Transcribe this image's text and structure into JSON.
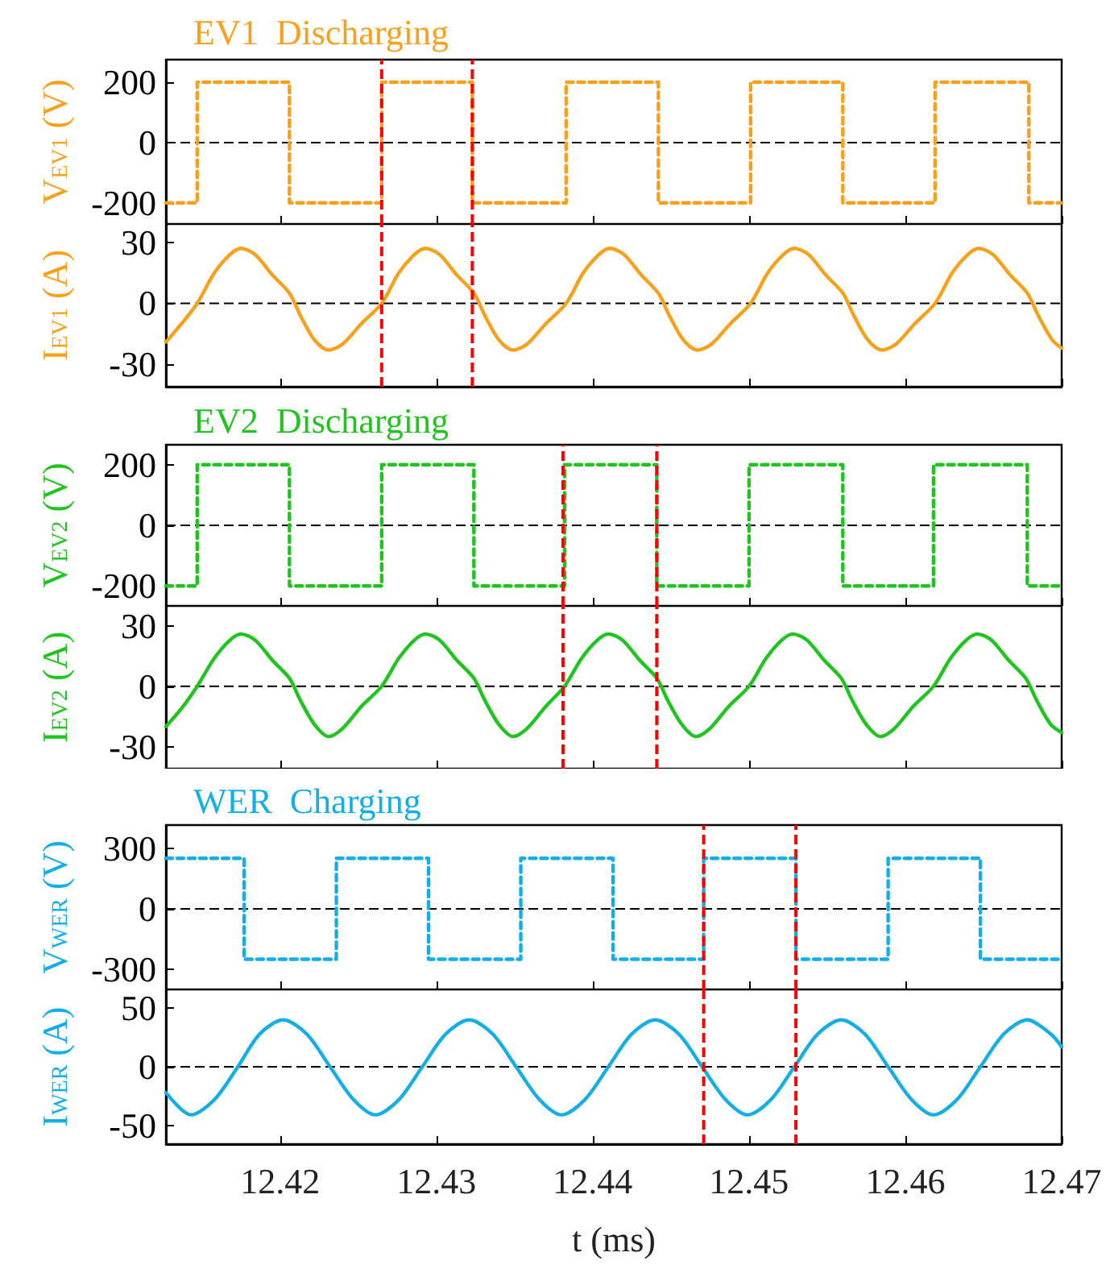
{
  "chart_data": [
    {
      "type": "step",
      "title": "EV1  Discharging",
      "ylabel": "V$_{EV1}$ (V)",
      "xlim": [
        12.4127,
        12.47
      ],
      "xticks": [
        12.42,
        12.43,
        12.44,
        12.45,
        12.46,
        12.47
      ],
      "ylim": [
        -270,
        275
      ],
      "yticks": [
        -200,
        0,
        200
      ],
      "tick_labels": "y",
      "line_style": "dotted",
      "series": [
        {
          "color": "#f9a01b",
          "x": [
            12.4127,
            12.4147,
            12.4206,
            12.4265,
            12.4323,
            12.4383,
            12.4442,
            12.4501,
            12.456,
            12.4619,
            12.4679,
            12.47
          ],
          "values": [
            -200,
            200,
            -200,
            200,
            -200,
            200,
            -200,
            200,
            -200,
            200,
            -200,
            -200
          ]
        }
      ],
      "ref_lines": [
        {
          "axis": "y",
          "value": 0,
          "color": "#000000",
          "line_style": "dashed"
        },
        {
          "axis": "x",
          "value": 12.4265,
          "color": "#ff0000",
          "line_style": "dashed"
        },
        {
          "axis": "x",
          "value": 12.4323,
          "color": "#ff0000",
          "line_style": "dashed"
        }
      ]
    },
    {
      "type": "line",
      "ylabel": "I$_{EV1}$ (A)",
      "xlim": [
        12.4127,
        12.47
      ],
      "xticks": [
        12.42,
        12.43,
        12.44,
        12.45,
        12.46,
        12.47
      ],
      "ylim": [
        -41,
        39
      ],
      "yticks": [
        -30,
        0,
        30
      ],
      "tick_labels": "y",
      "line_style": "solid",
      "series": [
        {
          "color": "#f9a01b",
          "x": [
            12.4127,
            12.4137,
            12.4147,
            12.4158,
            12.4168,
            12.4175,
            12.4184,
            12.4195,
            12.4206,
            12.4213,
            12.4222,
            12.4231,
            12.424,
            12.4252,
            12.4265,
            12.4276,
            12.4286,
            12.4293,
            12.4302,
            12.4313,
            12.4324,
            12.4331,
            12.434,
            12.4349,
            12.4358,
            12.437,
            12.4383,
            12.4394,
            12.4404,
            12.4411,
            12.442,
            12.4431,
            12.4442,
            12.4449,
            12.4458,
            12.4467,
            12.4476,
            12.4488,
            12.4501,
            12.4512,
            12.4522,
            12.4529,
            12.4538,
            12.4549,
            12.456,
            12.4567,
            12.4576,
            12.4585,
            12.4594,
            12.4606,
            12.4619,
            12.463,
            12.464,
            12.4647,
            12.4656,
            12.4667,
            12.4678,
            12.4685,
            12.4694,
            12.47
          ],
          "values": [
            -19,
            -10,
            0,
            15,
            24,
            27,
            24,
            14,
            5,
            -6,
            -18,
            -23,
            -20,
            -10,
            0,
            15,
            24,
            27,
            24,
            14,
            5,
            -6,
            -18,
            -23,
            -20,
            -10,
            0,
            15,
            24,
            27,
            24,
            14,
            5,
            -6,
            -18,
            -23,
            -20,
            -10,
            0,
            15,
            24,
            27,
            24,
            14,
            5,
            -6,
            -18,
            -23,
            -20,
            -10,
            0,
            15,
            24,
            27,
            24,
            14,
            5,
            -6,
            -18,
            -22
          ]
        }
      ],
      "ref_lines": [
        {
          "axis": "y",
          "value": 0,
          "color": "#000000",
          "line_style": "dashed"
        },
        {
          "axis": "x",
          "value": 12.4265,
          "color": "#ff0000",
          "line_style": "dashed"
        },
        {
          "axis": "x",
          "value": 12.4323,
          "color": "#ff0000",
          "line_style": "dashed"
        }
      ]
    },
    {
      "type": "step",
      "title": "EV2  Discharging",
      "ylabel": "V$_{EV2}$ (V)",
      "xlim": [
        12.4127,
        12.47
      ],
      "xticks": [
        12.42,
        12.43,
        12.44,
        12.45,
        12.46,
        12.47
      ],
      "ylim": [
        -266,
        266
      ],
      "yticks": [
        -200,
        0,
        200
      ],
      "tick_labels": "y",
      "line_style": "dotted",
      "series": [
        {
          "color": "#1fc41f",
          "x": [
            12.4127,
            12.4147,
            12.4206,
            12.4265,
            12.4324,
            12.4382,
            12.4441,
            12.45,
            12.456,
            12.4618,
            12.4678,
            12.47
          ],
          "values": [
            -200,
            200,
            -200,
            200,
            -200,
            200,
            -200,
            200,
            -200,
            200,
            -200,
            -200
          ]
        }
      ],
      "ref_lines": [
        {
          "axis": "y",
          "value": 0,
          "color": "#000000",
          "line_style": "dashed"
        },
        {
          "axis": "x",
          "value": 12.4381,
          "color": "#ff0000",
          "line_style": "dashed"
        },
        {
          "axis": "x",
          "value": 12.4441,
          "color": "#ff0000",
          "line_style": "dashed"
        }
      ]
    },
    {
      "type": "line",
      "ylabel": "I$_{EV2}$ (A)",
      "xlim": [
        12.4127,
        12.47
      ],
      "xticks": [
        12.42,
        12.43,
        12.44,
        12.45,
        12.46,
        12.47
      ],
      "ylim": [
        -41,
        40
      ],
      "yticks": [
        -30,
        0,
        30
      ],
      "tick_labels": "y",
      "line_style": "solid",
      "series": [
        {
          "color": "#1fc41f",
          "x": [
            12.4127,
            12.4137,
            12.4147,
            12.4158,
            12.4168,
            12.4175,
            12.4184,
            12.4195,
            12.4206,
            12.4213,
            12.4222,
            12.4231,
            12.424,
            12.4252,
            12.4265,
            12.4276,
            12.4286,
            12.4293,
            12.4302,
            12.4313,
            12.4324,
            12.4331,
            12.434,
            12.4349,
            12.4358,
            12.437,
            12.4382,
            12.4393,
            12.4403,
            12.441,
            12.4419,
            12.443,
            12.4441,
            12.4448,
            12.4457,
            12.4466,
            12.4475,
            12.4487,
            12.45,
            12.4511,
            12.4521,
            12.4528,
            12.4537,
            12.4548,
            12.4559,
            12.4566,
            12.4575,
            12.4584,
            12.4593,
            12.4605,
            12.4618,
            12.4629,
            12.4639,
            12.4646,
            12.4655,
            12.4666,
            12.4677,
            12.4684,
            12.4693,
            12.47
          ],
          "values": [
            -20,
            -11,
            0,
            14,
            23,
            26,
            23,
            13,
            4,
            -7,
            -19,
            -25,
            -21,
            -10,
            0,
            14,
            23,
            26,
            23,
            13,
            4,
            -7,
            -19,
            -25,
            -21,
            -10,
            0,
            14,
            23,
            26,
            23,
            13,
            4,
            -7,
            -19,
            -25,
            -21,
            -10,
            0,
            14,
            23,
            26,
            23,
            13,
            4,
            -7,
            -19,
            -25,
            -21,
            -10,
            0,
            14,
            23,
            26,
            23,
            13,
            4,
            -7,
            -19,
            -23
          ]
        }
      ],
      "ref_lines": [
        {
          "axis": "y",
          "value": 0,
          "color": "#000000",
          "line_style": "dashed"
        },
        {
          "axis": "x",
          "value": 12.4381,
          "color": "#ff0000",
          "line_style": "dashed"
        },
        {
          "axis": "x",
          "value": 12.4441,
          "color": "#ff0000",
          "line_style": "dashed"
        }
      ]
    },
    {
      "type": "step",
      "title": "WER  Charging",
      "ylabel": "V$_{WER}$ (V)",
      "xlim": [
        12.4127,
        12.47
      ],
      "xticks": [
        12.42,
        12.43,
        12.44,
        12.45,
        12.46,
        12.47
      ],
      "ylim": [
        -400,
        415
      ],
      "yticks": [
        -300,
        0,
        300
      ],
      "tick_labels": "y",
      "line_style": "dotted",
      "series": [
        {
          "color": "#14aee6",
          "x": [
            12.4127,
            12.4177,
            12.4236,
            12.4295,
            12.4354,
            12.4413,
            12.4471,
            12.453,
            12.4589,
            12.4648,
            12.47
          ],
          "values": [
            250,
            -250,
            250,
            -250,
            250,
            -250,
            250,
            -250,
            250,
            -250,
            -250
          ]
        }
      ],
      "ref_lines": [
        {
          "axis": "y",
          "value": 0,
          "color": "#000000",
          "line_style": "dashed"
        },
        {
          "axis": "x",
          "value": 12.4471,
          "color": "#ff0000",
          "line_style": "dashed"
        },
        {
          "axis": "x",
          "value": 12.453,
          "color": "#ff0000",
          "line_style": "dashed"
        }
      ]
    },
    {
      "type": "line",
      "ylabel": "I$_{WER}$ (A)",
      "xlabel": "t (ms)",
      "xlim": [
        12.4127,
        12.47
      ],
      "xticks": [
        12.42,
        12.43,
        12.44,
        12.45,
        12.46,
        12.47
      ],
      "ylim": [
        -66,
        66
      ],
      "yticks": [
        -50,
        0,
        50
      ],
      "line_style": "solid",
      "series": [
        {
          "color": "#14aee6",
          "x": [
            12.4127,
            12.4143,
            12.4158,
            12.4173,
            12.4187,
            12.4202,
            12.4217,
            12.4232,
            12.4247,
            12.4261,
            12.4276,
            12.4291,
            12.4306,
            12.4321,
            12.4336,
            12.4351,
            12.4366,
            12.438,
            12.4395,
            12.441,
            12.4425,
            12.444,
            12.4455,
            12.447,
            12.4485,
            12.4499,
            12.4514,
            12.4529,
            12.4544,
            12.4559,
            12.4574,
            12.4589,
            12.4604,
            12.4618,
            12.4633,
            12.4648,
            12.4663,
            12.4678,
            12.4693,
            12.47
          ],
          "values": [
            -22,
            -41,
            -28,
            0,
            28,
            40,
            28,
            0,
            -28,
            -41,
            -28,
            0,
            28,
            40,
            28,
            0,
            -28,
            -41,
            -28,
            0,
            28,
            40,
            28,
            0,
            -28,
            -41,
            -28,
            0,
            28,
            40,
            28,
            0,
            -28,
            -41,
            -28,
            0,
            28,
            40,
            28,
            17
          ]
        }
      ],
      "ref_lines": [
        {
          "axis": "y",
          "value": 0,
          "color": "#000000",
          "line_style": "dashed"
        },
        {
          "axis": "x",
          "value": 12.4471,
          "color": "#ff0000",
          "line_style": "dashed"
        },
        {
          "axis": "x",
          "value": 12.453,
          "color": "#ff0000",
          "line_style": "dashed"
        }
      ]
    }
  ]
}
